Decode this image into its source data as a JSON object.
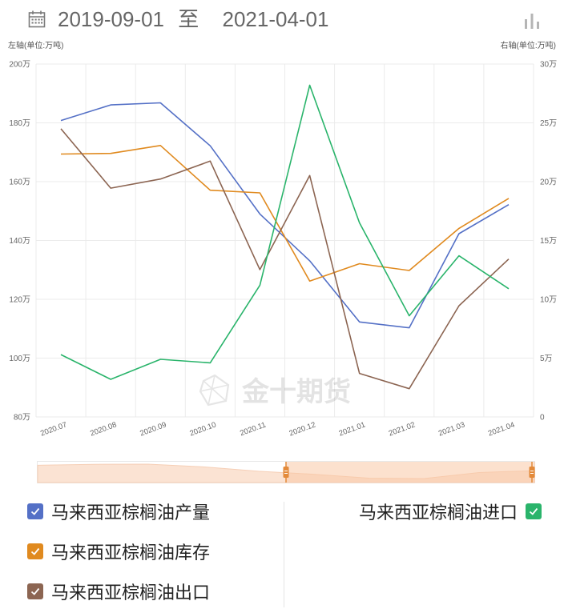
{
  "header": {
    "start_date": "2019-09-01",
    "separator": "至",
    "end_date": "2021-04-01",
    "calendar_icon": "calendar-icon",
    "chart_toggle_icon": "bar-chart-icon"
  },
  "axis_units": {
    "left": "左轴(单位:万吨)",
    "right": "右轴(单位:万吨)"
  },
  "watermark": "金十期货",
  "chart_data": {
    "type": "line",
    "categories": [
      "2020.07",
      "2020.08",
      "2020.09",
      "2020.10",
      "2020.11",
      "2020.12",
      "2021.01",
      "2021.02",
      "2021.03",
      "2021.04"
    ],
    "y_left": {
      "label": "左轴(单位:万吨)",
      "min": 80,
      "max": 200,
      "ticks": [
        "80万",
        "100万",
        "120万",
        "140万",
        "160万",
        "180万",
        "200万"
      ]
    },
    "y_right": {
      "label": "右轴(单位:万吨)",
      "min": 0,
      "max": 30,
      "ticks": [
        "0",
        "5万",
        "10万",
        "15万",
        "20万",
        "25万",
        "30万"
      ]
    },
    "grid": true,
    "legend_position": "bottom",
    "series": [
      {
        "name": "马来西亚棕榈油产量",
        "axis": "left",
        "color": "#5470c6",
        "values": [
          180.8,
          186.1,
          186.8,
          172.2,
          149.0,
          133.1,
          112.3,
          110.3,
          142.3,
          152.2
        ]
      },
      {
        "name": "马来西亚棕榈油库存",
        "axis": "left",
        "color": "#e08a1f",
        "values": [
          169.4,
          169.6,
          172.3,
          157.1,
          156.2,
          126.2,
          132.1,
          129.8,
          144.1,
          154.3
        ]
      },
      {
        "name": "马来西亚棕榈油出口",
        "axis": "left",
        "color": "#8c6552",
        "values": [
          178.0,
          157.8,
          160.9,
          167.0,
          130.1,
          162.1,
          94.8,
          89.6,
          117.8,
          133.7
        ]
      },
      {
        "name": "马来西亚棕榈油进口",
        "axis": "right",
        "color": "#2ab46b",
        "values": [
          5.3,
          3.2,
          4.9,
          4.6,
          11.2,
          28.2,
          16.5,
          8.6,
          13.7,
          10.9
        ]
      }
    ]
  },
  "zoom": {
    "start": 0.5,
    "end": 1.0
  },
  "legend": [
    {
      "label": "马来西亚棕榈油产量",
      "color": "#5470c6",
      "checked": true
    },
    {
      "label": "马来西亚棕榈油库存",
      "color": "#e08a1f",
      "checked": true
    },
    {
      "label": "马来西亚棕榈油出口",
      "color": "#8c6552",
      "checked": true
    },
    {
      "label": "马来西亚棕榈油进口",
      "color": "#2ab46b",
      "checked": true
    }
  ]
}
